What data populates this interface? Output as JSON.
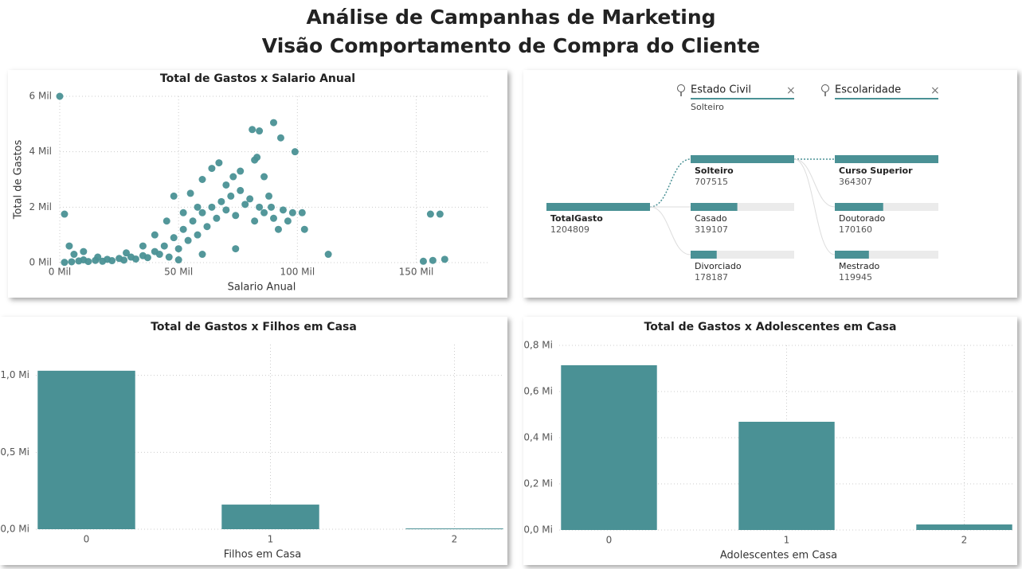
{
  "header": {
    "title": [
      "Análise de Campanhas de Marketing",
      "Visão Comportamento de Compra do Cliente"
    ]
  },
  "chart_data": [
    {
      "type": "scatter",
      "title": "Total de Gastos x Salario Anual",
      "xlabel": "Salario Anual",
      "ylabel": "Total de Gastos",
      "color": "#4a9195",
      "x": [
        0,
        2000,
        2000,
        5000,
        8000,
        10000,
        12000,
        15000,
        18000,
        20000,
        22000,
        25000,
        27000,
        30000,
        32000,
        35000,
        37000,
        40000,
        42000,
        44000,
        46000,
        48000,
        50000,
        52000,
        54000,
        56000,
        58000,
        60000,
        62000,
        64000,
        66000,
        68000,
        70000,
        72000,
        74000,
        76000,
        78000,
        80000,
        82000,
        84000,
        86000,
        88000,
        90000,
        92000,
        94000,
        96000,
        98000,
        102000,
        103000,
        48000,
        55000,
        60000,
        64000,
        67000,
        73000,
        76000,
        70000,
        58000,
        52000,
        45000,
        40000,
        35000,
        6000,
        10000,
        4000,
        16000,
        28000,
        86000,
        89000,
        74000,
        60000,
        50000,
        90000,
        81000,
        84000,
        99000,
        93000,
        83000,
        82000,
        113000,
        156000,
        160000,
        153000,
        157000,
        162000
      ],
      "values": [
        6000,
        1750,
        10,
        30,
        60,
        100,
        40,
        80,
        50,
        120,
        70,
        150,
        90,
        200,
        130,
        250,
        180,
        400,
        300,
        600,
        200,
        900,
        500,
        1200,
        800,
        1500,
        1000,
        1800,
        1300,
        2000,
        1600,
        2200,
        1900,
        2400,
        1700,
        2600,
        2100,
        2300,
        1500,
        2000,
        1800,
        2400,
        1600,
        1200,
        1900,
        1500,
        1800,
        1800,
        1200,
        2400,
        2500,
        3000,
        3400,
        3600,
        3100,
        3300,
        2800,
        2000,
        1800,
        1500,
        1000,
        600,
        300,
        400,
        600,
        200,
        350,
        3100,
        2000,
        500,
        300,
        100,
        5050,
        4800,
        4750,
        4000,
        4500,
        3800,
        3700,
        300,
        1750,
        1750,
        50,
        80,
        120
      ],
      "xlim": [
        0,
        180000
      ],
      "ylim": [
        0,
        6000
      ],
      "xticks": [
        {
          "value": 0,
          "label": "0 Mil"
        },
        {
          "value": 50000,
          "label": "50 Mil"
        },
        {
          "value": 100000,
          "label": "100 Mil"
        },
        {
          "value": 150000,
          "label": "150 Mil"
        }
      ],
      "yticks": [
        {
          "value": 0,
          "label": "0 Mil"
        },
        {
          "value": 2000,
          "label": "2 Mil"
        },
        {
          "value": 4000,
          "label": "4 Mil"
        },
        {
          "value": 6000,
          "label": "6 Mil"
        }
      ],
      "grid": true
    },
    {
      "type": "bar",
      "title": "Total de Gastos x Filhos em Casa",
      "xlabel": "Filhos em Casa",
      "color": "#4a9195",
      "categories": [
        "0",
        "1",
        "2"
      ],
      "values": [
        1030000,
        160000,
        5000
      ],
      "ylim": [
        0,
        1200000
      ],
      "yticks": [
        {
          "value": 0,
          "label": "0,0 Mi"
        },
        {
          "value": 500000,
          "label": "0,5 Mi"
        },
        {
          "value": 1000000,
          "label": "1,0 Mi"
        }
      ],
      "grid": true
    },
    {
      "type": "bar",
      "title": "Total de Gastos x Adolescentes em Casa",
      "xlabel": "Adolescentes em Casa",
      "color": "#4a9195",
      "categories": [
        "0",
        "1",
        "2"
      ],
      "values": [
        714000,
        469000,
        24000
      ],
      "ylim": [
        0,
        800000
      ],
      "yticks": [
        {
          "value": 0,
          "label": "0,0 Mi"
        },
        {
          "value": 200000,
          "label": "0,2 Mi"
        },
        {
          "value": 400000,
          "label": "0,4 Mi"
        },
        {
          "value": 600000,
          "label": "0,6 Mi"
        },
        {
          "value": 800000,
          "label": "0,8 Mi"
        }
      ],
      "grid": true
    }
  ],
  "tree": {
    "color": "#4a9195",
    "root": {
      "name": "TotalGasto",
      "value": 1204809
    },
    "levels": [
      {
        "field": "Estado Civil",
        "selected": "Solteiro",
        "nodes": [
          {
            "name": "Solteiro",
            "value": 707515
          },
          {
            "name": "Casado",
            "value": 319107
          },
          {
            "name": "Divorciado",
            "value": 178187
          }
        ]
      },
      {
        "field": "Escolaridade",
        "nodes": [
          {
            "name": "Curso Superior",
            "value": 364307
          },
          {
            "name": "Doutorado",
            "value": 170160
          },
          {
            "name": "Mestrado",
            "value": 119945
          }
        ]
      }
    ]
  }
}
